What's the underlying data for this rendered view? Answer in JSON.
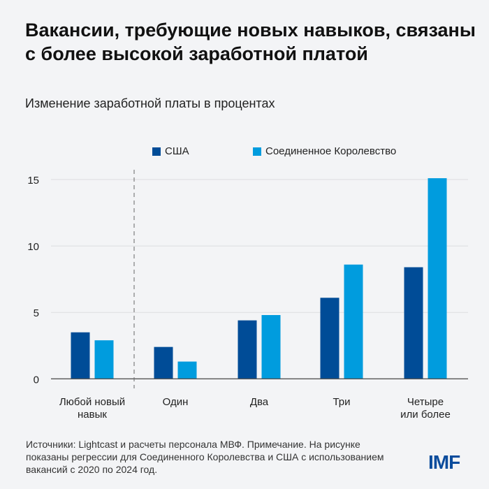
{
  "title": "Вакансии, требующие новых навыков, связаны с более высокой заработной платой",
  "subtitle": "Изменение заработной платы в процентах",
  "footnote": "Источники: Lightcast и расчеты персонала МВФ. Примечание. На рисунке показаны регрессии для Соединенного Королевства и США с использованием вакансий с 2020 по 2024 год.",
  "logo": "IMF",
  "colors": {
    "usa": "#004c97",
    "uk": "#009cde"
  },
  "chart_data": {
    "type": "bar",
    "categories": [
      [
        "Любой новый",
        "навык"
      ],
      [
        "Один"
      ],
      [
        "Два"
      ],
      [
        "Три"
      ],
      [
        "Четыре",
        "или более"
      ]
    ],
    "series": [
      {
        "name": "США",
        "values": [
          3.5,
          2.4,
          4.4,
          6.1,
          8.4
        ]
      },
      {
        "name": "Соединенное Королевство",
        "values": [
          2.9,
          1.3,
          4.8,
          8.6,
          15.1
        ]
      }
    ],
    "ylim": [
      0,
      15
    ],
    "yticks": [
      0,
      5,
      10,
      15
    ],
    "grid": true,
    "legend": "top",
    "separator_after_category": 0
  }
}
